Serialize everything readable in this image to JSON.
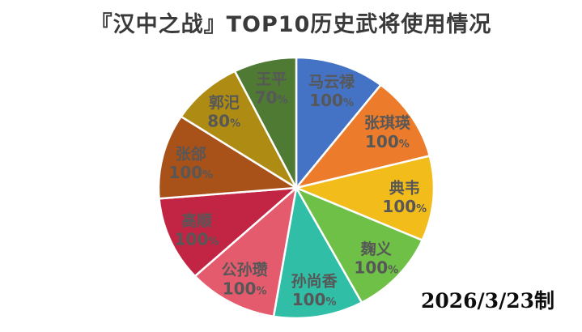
{
  "chart_data": {
    "type": "pie",
    "title": "『汉中之战』TOP10历史武将使用情况",
    "annotation": "2026/3/23制",
    "start_angle": "top",
    "direction": "clockwise",
    "legend_position": "none",
    "labels_inside": true,
    "label_color": "#575757",
    "label_radius_fraction": 0.79,
    "slices": [
      {
        "name": "马云禄",
        "value": 100,
        "value_label": "100%",
        "color": "#4472C4"
      },
      {
        "name": "张琪瑛",
        "value": 100,
        "value_label": "100%",
        "color": "#EC7C2C"
      },
      {
        "name": "典韦",
        "value": 100,
        "value_label": "100%",
        "color": "#F2BC1B"
      },
      {
        "name": "麹义",
        "value": 100,
        "value_label": "100%",
        "color": "#6EC047"
      },
      {
        "name": "孙尚香",
        "value": 100,
        "value_label": "100%",
        "color": "#30BFA6"
      },
      {
        "name": "公孙瓒",
        "value": 100,
        "value_label": "100%",
        "color": "#E45B6E"
      },
      {
        "name": "高顺",
        "value": 100,
        "value_label": "100%",
        "color": "#C22543"
      },
      {
        "name": "张郃",
        "value": 100,
        "value_label": "100%",
        "color": "#A85119"
      },
      {
        "name": "郭汜",
        "value": 80,
        "value_label": "80%",
        "color": "#AE8C13"
      },
      {
        "name": "王平",
        "value": 70,
        "value_label": "70%",
        "color": "#4E7A33"
      }
    ]
  }
}
